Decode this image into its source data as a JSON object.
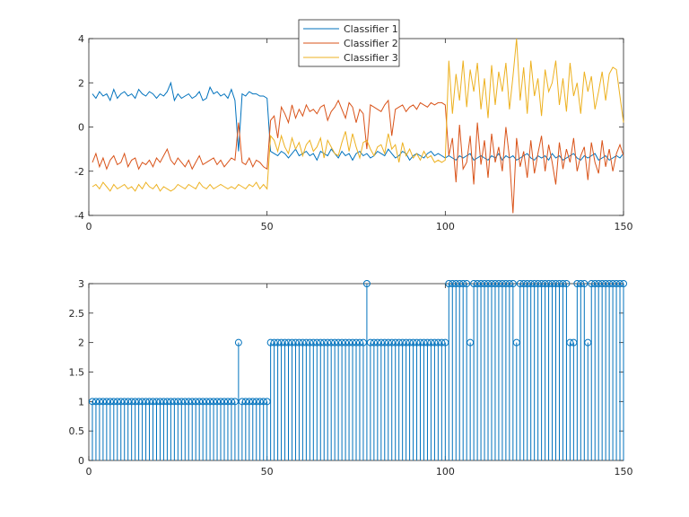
{
  "colors": {
    "classifier1": "#0072BD",
    "classifier2": "#D95319",
    "classifier3": "#EDB120",
    "stem": "#0072BD"
  },
  "chart_data": [
    {
      "type": "line",
      "title": "",
      "xlabel": "",
      "ylabel": "",
      "xlim": [
        0,
        150
      ],
      "ylim": [
        -4,
        4
      ],
      "xticks": [
        "0",
        "50",
        "100",
        "150"
      ],
      "yticks": [
        "-4",
        "-2",
        "0",
        "2",
        "4"
      ],
      "legend_position": "top-center",
      "grid": false,
      "x": [
        1,
        2,
        3,
        4,
        5,
        6,
        7,
        8,
        9,
        10,
        11,
        12,
        13,
        14,
        15,
        16,
        17,
        18,
        19,
        20,
        21,
        22,
        23,
        24,
        25,
        26,
        27,
        28,
        29,
        30,
        31,
        32,
        33,
        34,
        35,
        36,
        37,
        38,
        39,
        40,
        41,
        42,
        43,
        44,
        45,
        46,
        47,
        48,
        49,
        50,
        51,
        52,
        53,
        54,
        55,
        56,
        57,
        58,
        59,
        60,
        61,
        62,
        63,
        64,
        65,
        66,
        67,
        68,
        69,
        70,
        71,
        72,
        73,
        74,
        75,
        76,
        77,
        78,
        79,
        80,
        81,
        82,
        83,
        84,
        85,
        86,
        87,
        88,
        89,
        90,
        91,
        92,
        93,
        94,
        95,
        96,
        97,
        98,
        99,
        100,
        101,
        102,
        103,
        104,
        105,
        106,
        107,
        108,
        109,
        110,
        111,
        112,
        113,
        114,
        115,
        116,
        117,
        118,
        119,
        120,
        121,
        122,
        123,
        124,
        125,
        126,
        127,
        128,
        129,
        130,
        131,
        132,
        133,
        134,
        135,
        136,
        137,
        138,
        139,
        140,
        141,
        142,
        143,
        144,
        145,
        146,
        147,
        148,
        149,
        150
      ],
      "series": [
        {
          "name": "Classifier 1",
          "color_key": "classifier1",
          "values": [
            1.5,
            1.3,
            1.6,
            1.4,
            1.5,
            1.2,
            1.7,
            1.3,
            1.5,
            1.6,
            1.4,
            1.5,
            1.3,
            1.7,
            1.5,
            1.4,
            1.6,
            1.5,
            1.3,
            1.5,
            1.4,
            1.6,
            2.0,
            1.2,
            1.5,
            1.3,
            1.4,
            1.5,
            1.3,
            1.4,
            1.6,
            1.2,
            1.3,
            1.8,
            1.5,
            1.6,
            1.4,
            1.5,
            1.3,
            1.7,
            1.2,
            -1.1,
            1.5,
            1.4,
            1.6,
            1.5,
            1.5,
            1.4,
            1.4,
            1.3,
            -1.1,
            -1.2,
            -1.3,
            -1.1,
            -1.2,
            -1.4,
            -1.2,
            -1.0,
            -1.3,
            -1.2,
            -1.1,
            -1.3,
            -1.2,
            -1.5,
            -1.1,
            -1.2,
            -1.3,
            -1.0,
            -1.2,
            -1.4,
            -1.1,
            -1.3,
            -1.2,
            -1.5,
            -1.2,
            -1.1,
            -1.3,
            -1.2,
            -1.4,
            -1.3,
            -1.1,
            -1.2,
            -1.3,
            -1.0,
            -1.2,
            -1.4,
            -1.3,
            -1.1,
            -1.2,
            -1.5,
            -1.3,
            -1.2,
            -1.3,
            -1.4,
            -1.2,
            -1.1,
            -1.3,
            -1.2,
            -1.3,
            -1.4,
            -1.3,
            -1.4,
            -1.5,
            -1.3,
            -1.4,
            -1.3,
            -1.2,
            -1.5,
            -1.4,
            -1.3,
            -1.4,
            -1.5,
            -1.3,
            -1.4,
            -1.2,
            -1.5,
            -1.3,
            -1.4,
            -1.3,
            -1.5,
            -1.4,
            -1.3,
            -1.2,
            -1.4,
            -1.5,
            -1.3,
            -1.4,
            -1.3,
            -1.5,
            -1.2,
            -1.4,
            -1.3,
            -1.5,
            -1.4,
            -1.3,
            -1.2,
            -1.4,
            -1.5,
            -1.3,
            -1.4,
            -1.3,
            -1.2,
            -1.5,
            -1.4,
            -1.3,
            -1.5,
            -1.4,
            -1.3,
            -1.4,
            -1.2
          ]
        },
        {
          "name": "Classifier 2",
          "color_key": "classifier2",
          "values": [
            -1.6,
            -1.2,
            -1.8,
            -1.4,
            -1.9,
            -1.5,
            -1.3,
            -1.7,
            -1.6,
            -1.2,
            -1.8,
            -1.5,
            -1.4,
            -1.9,
            -1.6,
            -1.7,
            -1.5,
            -1.8,
            -1.4,
            -1.6,
            -1.3,
            -1.0,
            -1.5,
            -1.7,
            -1.4,
            -1.6,
            -1.8,
            -1.5,
            -1.9,
            -1.6,
            -1.3,
            -1.7,
            -1.6,
            -1.5,
            -1.4,
            -1.7,
            -1.5,
            -1.8,
            -1.6,
            -1.4,
            -1.5,
            0.2,
            -1.6,
            -1.7,
            -1.4,
            -1.8,
            -1.5,
            -1.6,
            -1.8,
            -1.9,
            0.3,
            0.5,
            -0.5,
            0.9,
            0.6,
            0.2,
            1.0,
            0.4,
            0.8,
            0.5,
            1.0,
            0.7,
            0.8,
            0.6,
            0.9,
            1.0,
            0.3,
            0.7,
            0.9,
            1.2,
            0.8,
            0.4,
            1.1,
            0.9,
            0.2,
            0.8,
            0.6,
            -1.0,
            1.0,
            0.9,
            0.8,
            0.7,
            1.0,
            1.2,
            -0.4,
            0.8,
            0.9,
            1.0,
            0.7,
            0.9,
            1.0,
            0.8,
            1.1,
            1.0,
            0.9,
            1.1,
            1.0,
            1.1,
            1.1,
            1.0,
            -1.3,
            -0.5,
            -2.5,
            0.1,
            -1.9,
            -1.6,
            -0.4,
            -2.6,
            0.2,
            -1.7,
            -0.6,
            -2.3,
            -0.3,
            -1.6,
            -0.9,
            -2.0,
            0.0,
            -1.4,
            -3.9,
            -0.5,
            -1.8,
            -1.1,
            -2.3,
            -0.6,
            -2.1,
            -1.2,
            -0.4,
            -2.0,
            -0.8,
            -1.6,
            -2.6,
            -0.7,
            -1.9,
            -1.0,
            -1.6,
            -0.5,
            -2.0,
            -1.3,
            -0.9,
            -2.4,
            -0.7,
            -1.6,
            -2.1,
            -0.6,
            -1.8,
            -1.0,
            -2.0,
            -1.2,
            -0.8,
            -1.3
          ]
        },
        {
          "name": "Classifier 3",
          "color_key": "classifier3",
          "values": [
            -2.7,
            -2.6,
            -2.8,
            -2.5,
            -2.7,
            -2.9,
            -2.6,
            -2.8,
            -2.7,
            -2.6,
            -2.8,
            -2.7,
            -2.9,
            -2.6,
            -2.8,
            -2.5,
            -2.7,
            -2.8,
            -2.6,
            -2.9,
            -2.7,
            -2.8,
            -2.9,
            -2.8,
            -2.6,
            -2.7,
            -2.8,
            -2.6,
            -2.7,
            -2.8,
            -2.5,
            -2.7,
            -2.8,
            -2.6,
            -2.8,
            -2.7,
            -2.6,
            -2.7,
            -2.8,
            -2.7,
            -2.8,
            -2.6,
            -2.7,
            -2.8,
            -2.6,
            -2.7,
            -2.5,
            -2.8,
            -2.6,
            -2.8,
            -0.4,
            -0.6,
            -1.1,
            -0.4,
            -0.9,
            -1.2,
            -0.5,
            -1.0,
            -0.7,
            -1.3,
            -0.8,
            -0.6,
            -1.1,
            -0.9,
            -0.5,
            -1.4,
            -0.6,
            -0.9,
            -1.2,
            -1.3,
            -0.7,
            -0.2,
            -1.1,
            -0.3,
            -0.9,
            -1.4,
            -0.7,
            -0.6,
            -1.0,
            -1.3,
            -0.9,
            -0.8,
            -1.2,
            -0.3,
            -1.0,
            -0.8,
            -1.6,
            -0.7,
            -1.3,
            -1.0,
            -1.4,
            -1.2,
            -1.5,
            -1.1,
            -1.4,
            -1.3,
            -1.6,
            -1.5,
            -1.6,
            -1.5,
            3.0,
            0.6,
            2.4,
            1.2,
            3.0,
            0.9,
            2.6,
            1.6,
            2.9,
            0.8,
            2.2,
            0.4,
            2.8,
            1.0,
            2.5,
            1.6,
            2.9,
            0.8,
            2.3,
            4.0,
            1.2,
            2.7,
            0.6,
            3.0,
            1.4,
            2.2,
            0.5,
            2.6,
            1.6,
            2.0,
            3.0,
            1.0,
            2.2,
            0.7,
            2.9,
            1.4,
            2.0,
            0.6,
            2.5,
            1.6,
            2.3,
            0.8,
            1.6,
            2.5,
            1.2,
            2.4,
            2.7,
            2.6,
            1.4,
            0.2
          ]
        }
      ]
    },
    {
      "type": "stem",
      "title": "",
      "xlabel": "",
      "ylabel": "",
      "xlim": [
        0,
        150
      ],
      "ylim": [
        0,
        3
      ],
      "xticks": [
        "0",
        "50",
        "100",
        "150"
      ],
      "yticks": [
        "0",
        "0.5",
        "1",
        "1.5",
        "2",
        "2.5",
        "3"
      ],
      "grid": false,
      "x": [
        1,
        2,
        3,
        4,
        5,
        6,
        7,
        8,
        9,
        10,
        11,
        12,
        13,
        14,
        15,
        16,
        17,
        18,
        19,
        20,
        21,
        22,
        23,
        24,
        25,
        26,
        27,
        28,
        29,
        30,
        31,
        32,
        33,
        34,
        35,
        36,
        37,
        38,
        39,
        40,
        41,
        42,
        43,
        44,
        45,
        46,
        47,
        48,
        49,
        50,
        51,
        52,
        53,
        54,
        55,
        56,
        57,
        58,
        59,
        60,
        61,
        62,
        63,
        64,
        65,
        66,
        67,
        68,
        69,
        70,
        71,
        72,
        73,
        74,
        75,
        76,
        77,
        78,
        79,
        80,
        81,
        82,
        83,
        84,
        85,
        86,
        87,
        88,
        89,
        90,
        91,
        92,
        93,
        94,
        95,
        96,
        97,
        98,
        99,
        100,
        101,
        102,
        103,
        104,
        105,
        106,
        107,
        108,
        109,
        110,
        111,
        112,
        113,
        114,
        115,
        116,
        117,
        118,
        119,
        120,
        121,
        122,
        123,
        124,
        125,
        126,
        127,
        128,
        129,
        130,
        131,
        132,
        133,
        134,
        135,
        136,
        137,
        138,
        139,
        140,
        141,
        142,
        143,
        144,
        145,
        146,
        147,
        148,
        149,
        150
      ],
      "values": [
        1,
        1,
        1,
        1,
        1,
        1,
        1,
        1,
        1,
        1,
        1,
        1,
        1,
        1,
        1,
        1,
        1,
        1,
        1,
        1,
        1,
        1,
        1,
        1,
        1,
        1,
        1,
        1,
        1,
        1,
        1,
        1,
        1,
        1,
        1,
        1,
        1,
        1,
        1,
        1,
        1,
        2,
        1,
        1,
        1,
        1,
        1,
        1,
        1,
        1,
        2,
        2,
        2,
        2,
        2,
        2,
        2,
        2,
        2,
        2,
        2,
        2,
        2,
        2,
        2,
        2,
        2,
        2,
        2,
        2,
        2,
        2,
        2,
        2,
        2,
        2,
        2,
        3,
        2,
        2,
        2,
        2,
        2,
        2,
        2,
        2,
        2,
        2,
        2,
        2,
        2,
        2,
        2,
        2,
        2,
        2,
        2,
        2,
        2,
        2,
        3,
        3,
        3,
        3,
        3,
        3,
        2,
        3,
        3,
        3,
        3,
        3,
        3,
        3,
        3,
        3,
        3,
        3,
        3,
        2,
        3,
        3,
        3,
        3,
        3,
        3,
        3,
        3,
        3,
        3,
        3,
        3,
        3,
        3,
        2,
        2,
        3,
        3,
        3,
        2,
        3,
        3,
        3,
        3,
        3,
        3,
        3,
        3,
        3,
        3
      ]
    }
  ]
}
